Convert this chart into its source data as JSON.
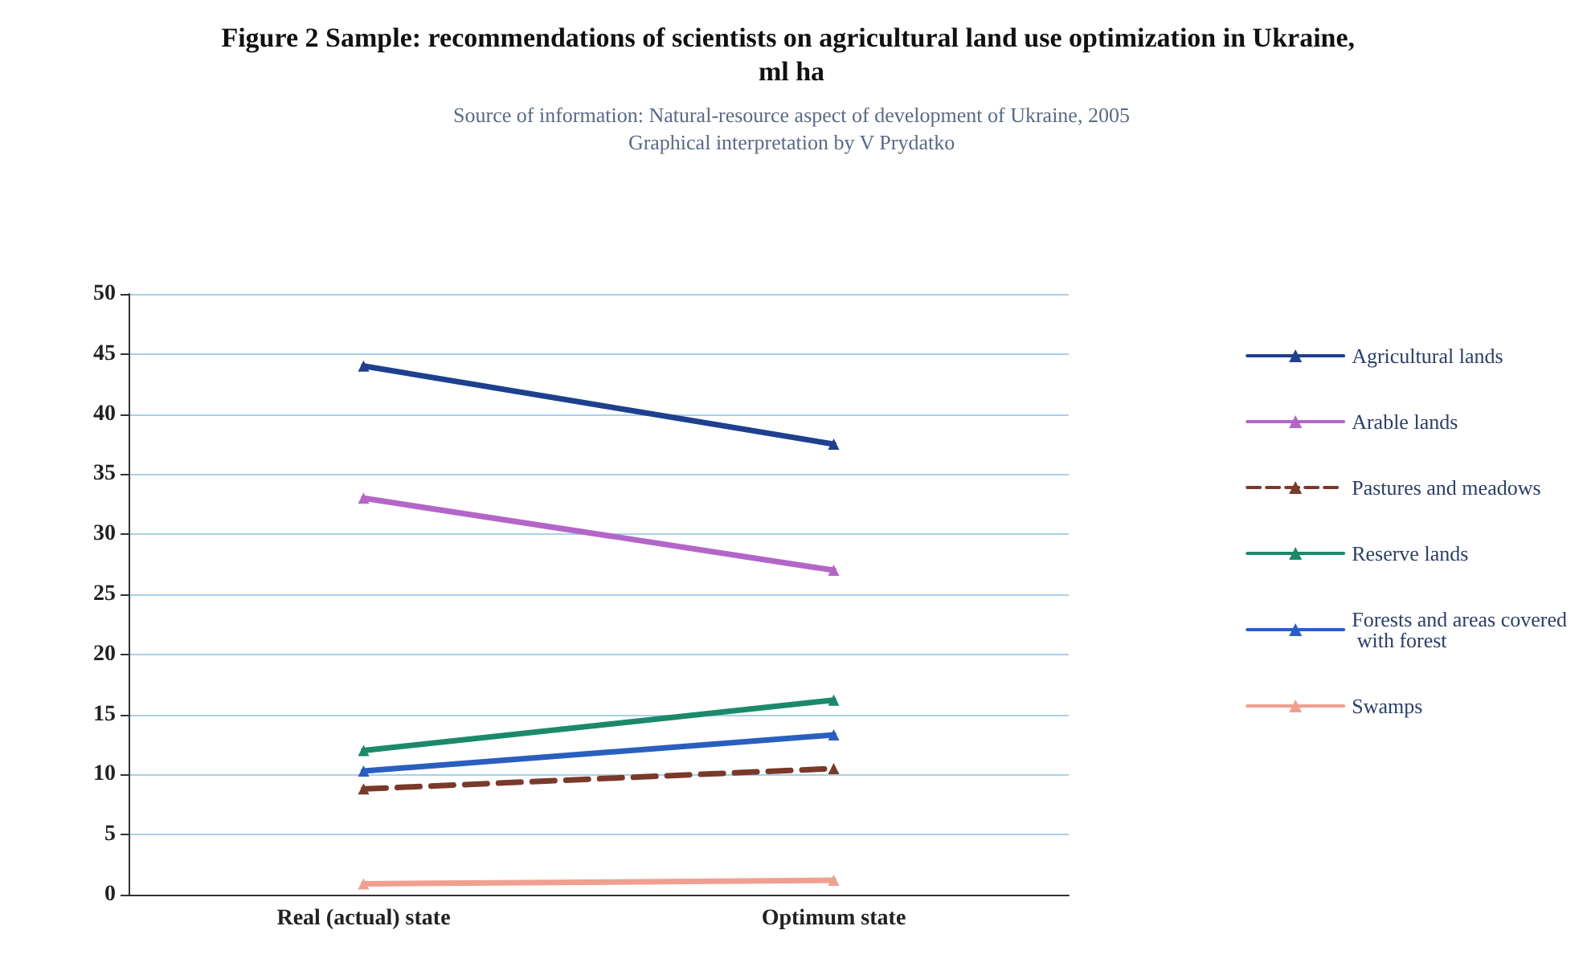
{
  "chart_data": {
    "type": "line",
    "title": "Figure 2 Sample: recommendations of scientists on agricultural land use optimization in Ukraine, ml ha",
    "subtitle": "Source of information: Natural-resource aspect of development of Ukraine, 2005",
    "annotations": [
      "Graphical interpretation by V Prydatko"
    ],
    "categories": [
      "Real (actual) state",
      "Optimum state"
    ],
    "series": [
      {
        "name": "Agricultural lands",
        "color": "#1f3f8f",
        "values": [
          44,
          37.5
        ]
      },
      {
        "name": "Arable lands",
        "color": "#b366c8",
        "values": [
          33,
          27
        ]
      },
      {
        "name": "Pastures and meadows",
        "color": "#7a3a2a",
        "values": [
          8.8,
          10.5
        ],
        "line_style": "dashed"
      },
      {
        "name": "Reserve lands",
        "color": "#1a8a6a",
        "values": [
          12,
          16.2
        ]
      },
      {
        "name": "Forests and areas covered with forest",
        "color": "#2a5fc0",
        "values": [
          10.3,
          13.3
        ]
      },
      {
        "name": "Swamps",
        "color": "#f0a090",
        "values": [
          0.9,
          1.2
        ]
      }
    ],
    "ylim": [
      0,
      50
    ],
    "yticks": [
      0,
      5,
      10,
      15,
      20,
      25,
      30,
      35,
      40,
      45,
      50
    ],
    "grid": "y",
    "legend": "right",
    "marker": "triangle",
    "line_style": "solid"
  }
}
